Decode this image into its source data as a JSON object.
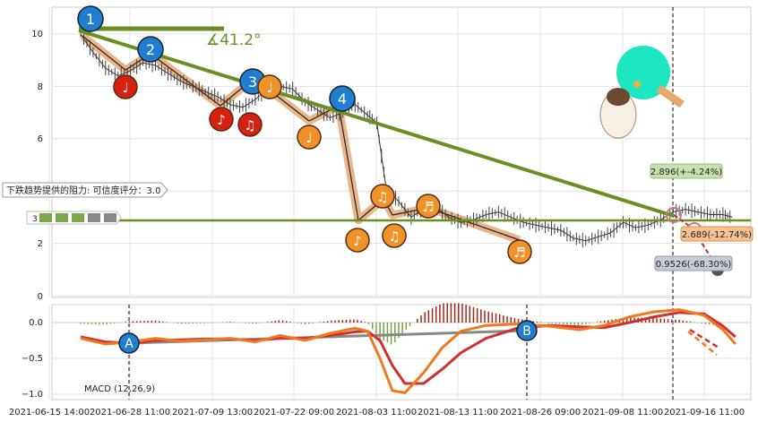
{
  "chart_data": [
    {
      "type": "line",
      "panel": "price",
      "ylim": [
        0,
        11
      ],
      "y_ticks": [
        "0",
        "2",
        "4",
        "6",
        "8",
        "10"
      ],
      "x_ticks": [
        "2021-06-15 14:00",
        "2021-06-28 11:00",
        "2021-07-09 13:00",
        "2021-07-22 09:00",
        "2021-08-03 11:00",
        "2021-08-13 11:00",
        "2021-08-26 09:00",
        "2021-09-08 11:00",
        "2021-09-16 11:00"
      ],
      "grid": true,
      "price_series": [
        [
          0,
          10.0
        ],
        [
          4,
          9.3
        ],
        [
          8,
          8.7
        ],
        [
          12,
          8.4
        ],
        [
          16,
          8.6
        ],
        [
          20,
          8.9
        ],
        [
          24,
          8.8
        ],
        [
          28,
          8.5
        ],
        [
          32,
          8.2
        ],
        [
          36,
          8.0
        ],
        [
          40,
          7.8
        ],
        [
          44,
          7.6
        ],
        [
          48,
          7.3
        ],
        [
          52,
          7.2
        ],
        [
          56,
          7.5
        ],
        [
          60,
          7.9
        ],
        [
          64,
          8.0
        ],
        [
          68,
          7.9
        ],
        [
          72,
          7.4
        ],
        [
          76,
          7.1
        ],
        [
          80,
          6.8
        ],
        [
          84,
          7.0
        ],
        [
          88,
          7.3
        ],
        [
          92,
          6.9
        ],
        [
          95,
          6.6
        ],
        [
          98,
          4.1
        ],
        [
          102,
          3.6
        ],
        [
          106,
          3.0
        ],
        [
          110,
          3.3
        ],
        [
          114,
          3.4
        ],
        [
          118,
          3.0
        ],
        [
          122,
          2.8
        ],
        [
          126,
          2.9
        ],
        [
          130,
          3.1
        ],
        [
          134,
          3.2
        ],
        [
          138,
          3.0
        ],
        [
          142,
          2.8
        ],
        [
          146,
          2.7
        ],
        [
          150,
          2.6
        ],
        [
          154,
          2.5
        ],
        [
          158,
          2.2
        ],
        [
          162,
          2.1
        ],
        [
          166,
          2.25
        ],
        [
          170,
          2.4
        ],
        [
          174,
          2.8
        ],
        [
          178,
          2.6
        ],
        [
          182,
          2.7
        ],
        [
          186,
          2.9
        ],
        [
          190,
          3.2
        ],
        [
          194,
          3.3
        ],
        [
          198,
          3.2
        ],
        [
          202,
          3.1
        ],
        [
          206,
          3.1
        ],
        [
          209,
          3.0
        ]
      ],
      "annotations": {
        "angle_text": "∡41.2°",
        "resistance_text": "下跌趋势提供的阻力: 可信度评分：3.0",
        "resistance_level": 2.9,
        "price_labels": [
          "2.896(+-4.24%)",
          "2.689(-12.74%)",
          "0.9526(-68.30%)"
        ],
        "circle_labels": [
          "1",
          "2",
          "3",
          "4"
        ],
        "legend_count": "3"
      },
      "colors": {
        "trend": "#6b8e23",
        "path": "#e8a070",
        "red_note": "#d62010",
        "orange_note": "#f0922a",
        "blue_circle": "#1f7ed0"
      }
    },
    {
      "type": "line",
      "panel": "macd",
      "title": "MACD (12,26,9)",
      "ylim": [
        -1.05,
        0.25
      ],
      "y_ticks": [
        "0.0",
        "−0.5",
        "−1.0"
      ],
      "macd_series": [
        [
          0,
          -0.22
        ],
        [
          8,
          -0.3
        ],
        [
          16,
          -0.27
        ],
        [
          24,
          -0.22
        ],
        [
          32,
          -0.26
        ],
        [
          40,
          -0.24
        ],
        [
          48,
          -0.22
        ],
        [
          56,
          -0.27
        ],
        [
          64,
          -0.18
        ],
        [
          72,
          -0.25
        ],
        [
          80,
          -0.15
        ],
        [
          88,
          -0.08
        ],
        [
          92,
          -0.12
        ],
        [
          96,
          -0.5
        ],
        [
          100,
          -0.95
        ],
        [
          104,
          -0.98
        ],
        [
          110,
          -0.7
        ],
        [
          116,
          -0.35
        ],
        [
          122,
          -0.12
        ],
        [
          130,
          -0.04
        ],
        [
          140,
          -0.02
        ],
        [
          150,
          -0.05
        ],
        [
          160,
          -0.1
        ],
        [
          168,
          -0.04
        ],
        [
          176,
          0.08
        ],
        [
          184,
          0.15
        ],
        [
          192,
          0.18
        ],
        [
          200,
          0.1
        ],
        [
          206,
          -0.1
        ],
        [
          210,
          -0.3
        ]
      ],
      "signal_series": [
        [
          0,
          -0.2
        ],
        [
          8,
          -0.27
        ],
        [
          16,
          -0.29
        ],
        [
          24,
          -0.25
        ],
        [
          32,
          -0.24
        ],
        [
          40,
          -0.23
        ],
        [
          48,
          -0.23
        ],
        [
          56,
          -0.25
        ],
        [
          64,
          -0.22
        ],
        [
          72,
          -0.22
        ],
        [
          80,
          -0.18
        ],
        [
          88,
          -0.13
        ],
        [
          92,
          -0.12
        ],
        [
          96,
          -0.25
        ],
        [
          100,
          -0.6
        ],
        [
          104,
          -0.85
        ],
        [
          110,
          -0.85
        ],
        [
          116,
          -0.65
        ],
        [
          122,
          -0.42
        ],
        [
          130,
          -0.22
        ],
        [
          140,
          -0.08
        ],
        [
          150,
          -0.04
        ],
        [
          160,
          -0.06
        ],
        [
          168,
          -0.07
        ],
        [
          176,
          0.0
        ],
        [
          184,
          0.08
        ],
        [
          192,
          0.14
        ],
        [
          200,
          0.12
        ],
        [
          206,
          -0.05
        ],
        [
          210,
          -0.2
        ]
      ],
      "markers": [
        "A",
        "B"
      ],
      "colors": {
        "macd": "#f07820",
        "signal": "#d03030"
      }
    }
  ]
}
